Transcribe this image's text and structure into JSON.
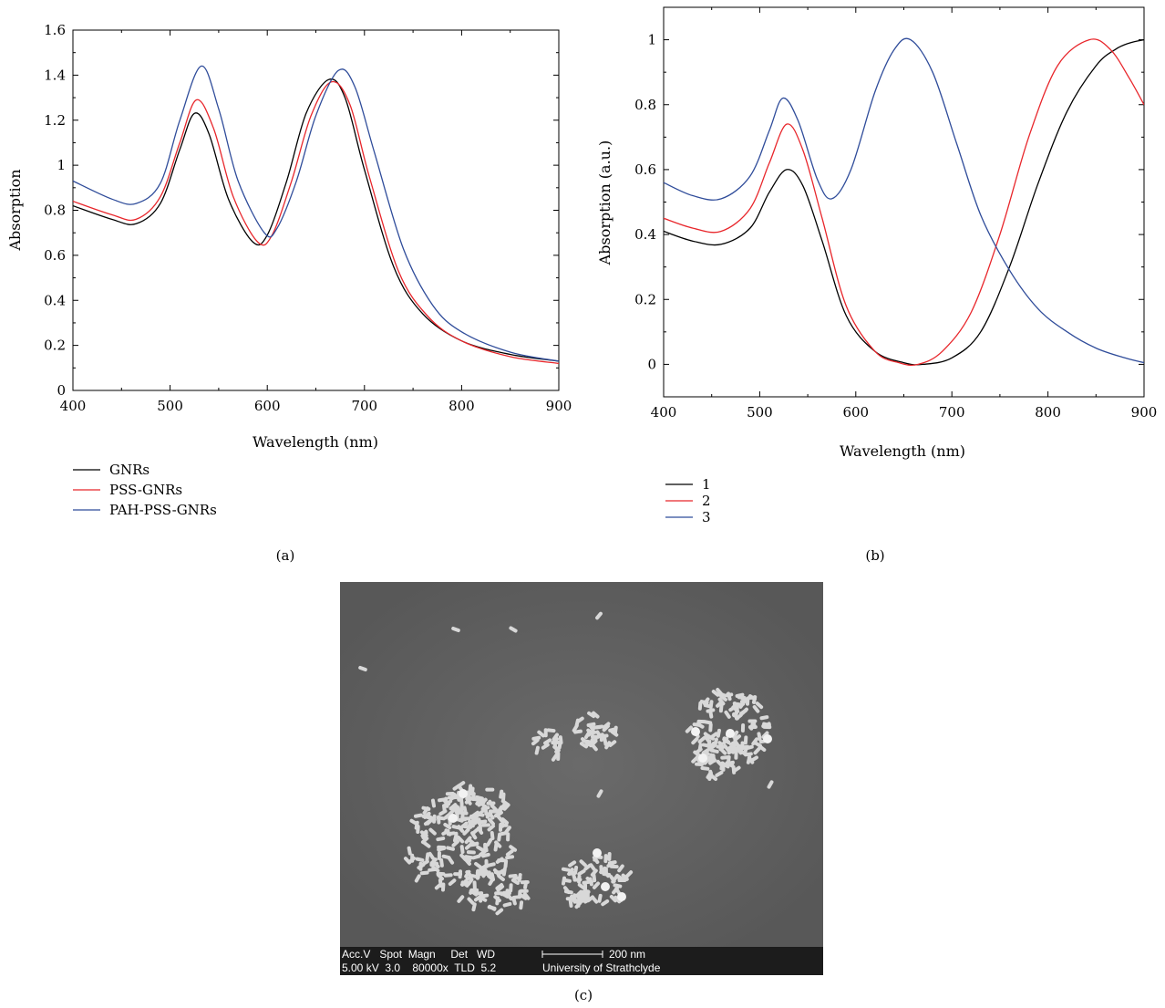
{
  "chart_data": [
    {
      "panel": "(a)",
      "type": "line",
      "xlabel": "Wavelength (nm)",
      "ylabel": "Absorption",
      "xlim": [
        400,
        900
      ],
      "ylim": [
        0,
        1.6
      ],
      "xticks": [
        400,
        500,
        600,
        700,
        800,
        900
      ],
      "yticks": [
        0,
        0.2,
        0.4,
        0.6,
        0.8,
        1,
        1.2,
        1.4,
        1.6
      ],
      "ytick_labels": [
        "0",
        "0.2",
        "0.4",
        "0.6",
        "0.8",
        "1",
        "1.2",
        "1.4",
        "1.6"
      ],
      "legend_placement": "below",
      "series": [
        {
          "name": "GNRs",
          "color": "#000000",
          "x": [
            400,
            440,
            465,
            490,
            510,
            525,
            540,
            560,
            585,
            600,
            620,
            640,
            663,
            680,
            700,
            730,
            760,
            800,
            850,
            900
          ],
          "y": [
            0.82,
            0.76,
            0.74,
            0.83,
            1.07,
            1.23,
            1.14,
            0.85,
            0.66,
            0.69,
            0.93,
            1.23,
            1.38,
            1.3,
            0.98,
            0.55,
            0.34,
            0.22,
            0.16,
            0.13
          ]
        },
        {
          "name": "PSS-GNRs",
          "color": "#e8262b",
          "x": [
            400,
            440,
            465,
            490,
            510,
            527,
            545,
            565,
            590,
            605,
            625,
            645,
            666,
            685,
            705,
            735,
            765,
            800,
            850,
            900
          ],
          "y": [
            0.84,
            0.78,
            0.76,
            0.86,
            1.1,
            1.29,
            1.16,
            0.86,
            0.66,
            0.69,
            0.93,
            1.22,
            1.37,
            1.27,
            0.95,
            0.53,
            0.33,
            0.22,
            0.15,
            0.12
          ]
        },
        {
          "name": "PAH-PSS-GNRs",
          "color": "#2f4c9a",
          "x": [
            400,
            440,
            465,
            490,
            510,
            532,
            550,
            570,
            597,
            610,
            630,
            650,
            673,
            690,
            710,
            740,
            770,
            800,
            850,
            900
          ],
          "y": [
            0.93,
            0.85,
            0.83,
            0.92,
            1.2,
            1.44,
            1.25,
            0.93,
            0.7,
            0.72,
            0.93,
            1.22,
            1.42,
            1.35,
            1.06,
            0.63,
            0.38,
            0.26,
            0.17,
            0.13
          ]
        }
      ]
    },
    {
      "panel": "(b)",
      "type": "line",
      "xlabel": "Wavelength (nm)",
      "ylabel": "Absorption (a.u.)",
      "xlim": [
        400,
        900
      ],
      "ylim": [
        -0.1,
        1.1
      ],
      "xticks": [
        400,
        500,
        600,
        700,
        800,
        900
      ],
      "yticks": [
        0,
        0.2,
        0.4,
        0.6,
        0.8,
        1
      ],
      "ytick_labels": [
        "0",
        "0.2",
        "0.4",
        "0.6",
        "0.8",
        "1"
      ],
      "legend_placement": "below",
      "series": [
        {
          "name": "1",
          "color": "#000000",
          "x": [
            400,
            430,
            460,
            490,
            510,
            528,
            545,
            565,
            590,
            620,
            650,
            670,
            700,
            730,
            760,
            790,
            820,
            850,
            870,
            885,
            900
          ],
          "y": [
            0.41,
            0.38,
            0.37,
            0.42,
            0.53,
            0.6,
            0.55,
            0.38,
            0.15,
            0.04,
            0.005,
            0.0,
            0.02,
            0.1,
            0.3,
            0.56,
            0.78,
            0.92,
            0.97,
            0.99,
            1.0
          ]
        },
        {
          "name": "2",
          "color": "#e8262b",
          "x": [
            400,
            430,
            460,
            490,
            510,
            528,
            545,
            565,
            590,
            620,
            645,
            665,
            690,
            720,
            750,
            780,
            810,
            843,
            865,
            885,
            900
          ],
          "y": [
            0.45,
            0.42,
            0.41,
            0.48,
            0.62,
            0.74,
            0.66,
            0.45,
            0.18,
            0.04,
            0.005,
            0.0,
            0.04,
            0.16,
            0.4,
            0.7,
            0.92,
            1.0,
            0.97,
            0.88,
            0.8
          ]
        },
        {
          "name": "3",
          "color": "#2f4c9a",
          "x": [
            400,
            430,
            460,
            490,
            510,
            524,
            540,
            560,
            575,
            595,
            620,
            640,
            657,
            680,
            705,
            730,
            760,
            790,
            820,
            850,
            880,
            900
          ],
          "y": [
            0.56,
            0.52,
            0.51,
            0.58,
            0.72,
            0.82,
            0.75,
            0.57,
            0.51,
            0.6,
            0.84,
            0.97,
            1.0,
            0.9,
            0.68,
            0.46,
            0.29,
            0.17,
            0.1,
            0.05,
            0.02,
            0.005
          ]
        }
      ]
    }
  ],
  "panels": {
    "a_label": "(a)",
    "b_label": "(b)",
    "c_label": "(c)"
  },
  "sem_image": {
    "header_line1": "Acc.V   Spot  Magn     Det   WD",
    "header_line2": "5.00 kV  3.0    80000x  TLD  5.2",
    "scale_label": "200 nm",
    "institution": "University of Strathclyde"
  }
}
